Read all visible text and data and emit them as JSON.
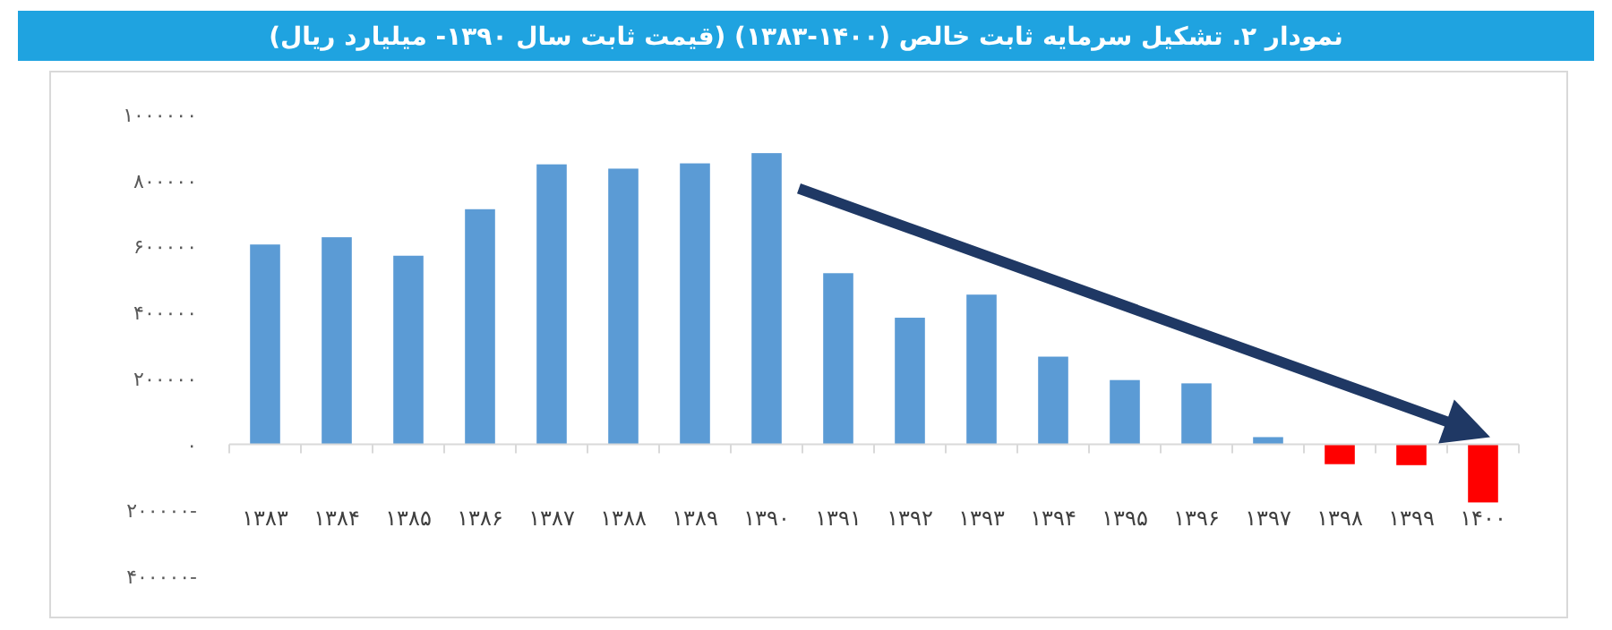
{
  "chart_data": {
    "type": "bar",
    "title": "نمودار ۲. تشکیل سرمایه ثابت خالص (۱۴۰۰-۱۳۸۳) (قیمت ثابت سال ۱۳۹۰- میلیارد ریال)",
    "categories": [
      "۱۳۸۳",
      "۱۳۸۴",
      "۱۳۸۵",
      "۱۳۸۶",
      "۱۳۸۷",
      "۱۳۸۸",
      "۱۳۸۹",
      "۱۳۹۰",
      "۱۳۹۱",
      "۱۳۹۲",
      "۱۳۹۳",
      "۱۳۹۴",
      "۱۳۹۵",
      "۱۳۹۶",
      "۱۳۹۷",
      "۱۳۹۸",
      "۱۳۹۹",
      "۱۴۰۰"
    ],
    "values": [
      606000,
      628000,
      572000,
      713000,
      849000,
      836000,
      852000,
      883000,
      519000,
      384000,
      454000,
      266000,
      195000,
      185000,
      22000,
      -60000,
      -63000,
      -176000
    ],
    "colors": [
      "#5b9bd5",
      "#5b9bd5",
      "#5b9bd5",
      "#5b9bd5",
      "#5b9bd5",
      "#5b9bd5",
      "#5b9bd5",
      "#5b9bd5",
      "#5b9bd5",
      "#5b9bd5",
      "#5b9bd5",
      "#5b9bd5",
      "#5b9bd5",
      "#5b9bd5",
      "#5b9bd5",
      "#ff0000",
      "#ff0000",
      "#ff0000"
    ],
    "ylim": [
      -400000,
      1000000
    ],
    "yticks": [
      {
        "value": 1000000,
        "label": "۱۰۰۰۰۰۰"
      },
      {
        "value": 800000,
        "label": "۸۰۰۰۰۰"
      },
      {
        "value": 600000,
        "label": "۶۰۰۰۰۰"
      },
      {
        "value": 400000,
        "label": "۴۰۰۰۰۰"
      },
      {
        "value": 200000,
        "label": "۲۰۰۰۰۰"
      },
      {
        "value": 0,
        "label": "۰"
      },
      {
        "value": -200000,
        "label": "۲۰۰۰۰۰-"
      },
      {
        "value": -400000,
        "label": "۴۰۰۰۰۰-"
      }
    ]
  }
}
